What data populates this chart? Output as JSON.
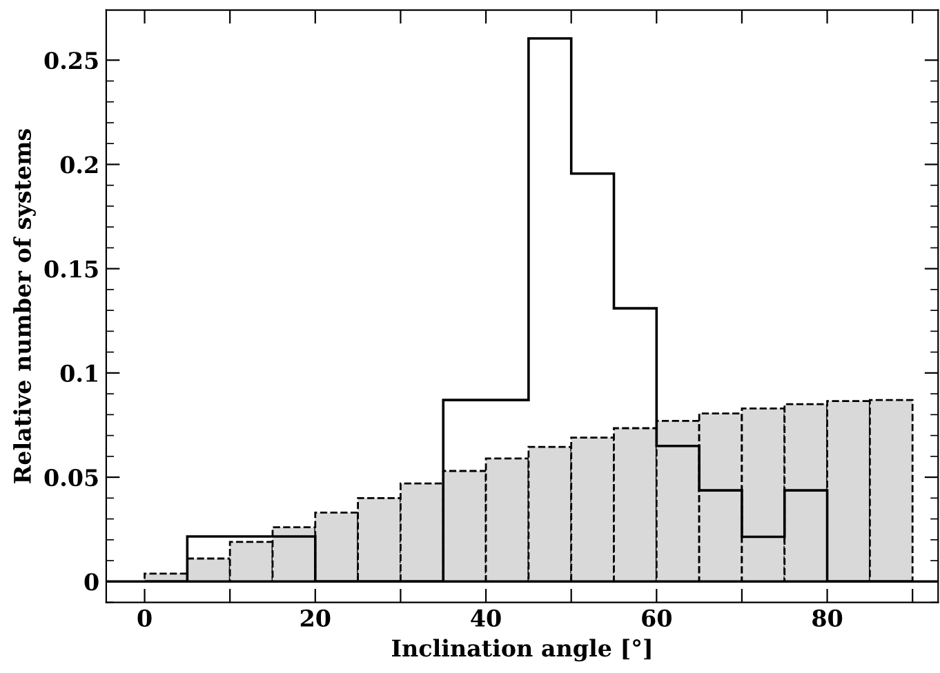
{
  "chart_data": {
    "type": "histogram",
    "xlabel": "Inclination angle [°]",
    "ylabel": "Relative number of systems",
    "bins": [
      0,
      5,
      10,
      15,
      20,
      25,
      30,
      35,
      40,
      45,
      50,
      55,
      60,
      65,
      70,
      75,
      80,
      85,
      90
    ],
    "series": [
      {
        "color": "#d9d9d9",
        "line_style": "dashed",
        "values": [
          0.0038,
          0.011,
          0.019,
          0.026,
          0.033,
          0.04,
          0.047,
          0.053,
          0.059,
          0.0645,
          0.069,
          0.0735,
          0.077,
          0.0806,
          0.083,
          0.085,
          0.0865,
          0.087
        ]
      },
      {
        "color": "#000000",
        "line_style": "solid",
        "values": [
          0,
          0.0216,
          0.0216,
          0.0216,
          0,
          0,
          0,
          0.087,
          0.087,
          0.2604,
          0.1956,
          0.131,
          0.065,
          0.0437,
          0.0214,
          0.0437,
          0,
          0
        ]
      }
    ],
    "ref_lines": [
      {
        "axis": "y",
        "value": 0,
        "color": "#000000"
      }
    ],
    "xlim": [
      -4.5,
      93
    ],
    "ylim": [
      -0.01,
      0.274
    ],
    "xticks": [
      0,
      {
        "value": 10,
        "label": null
      },
      20,
      {
        "value": 30,
        "label": null
      },
      40,
      {
        "value": 50,
        "label": null
      },
      60,
      {
        "value": 70,
        "label": null
      },
      80,
      {
        "value": 90,
        "label": null
      }
    ],
    "yticks": [
      0,
      0.05,
      0.1,
      0.15,
      0.2,
      0.25,
      {
        "value": -0.01,
        "label": null
      },
      {
        "value": 0.01,
        "label": null
      },
      {
        "value": 0.02,
        "label": null
      },
      {
        "value": 0.03,
        "label": null
      },
      {
        "value": 0.04,
        "label": null
      },
      {
        "value": 0.06,
        "label": null
      },
      {
        "value": 0.07,
        "label": null
      },
      {
        "value": 0.08,
        "label": null
      },
      {
        "value": 0.09,
        "label": null
      },
      {
        "value": 0.11,
        "label": null
      },
      {
        "value": 0.12,
        "label": null
      },
      {
        "value": 0.13,
        "label": null
      },
      {
        "value": 0.14,
        "label": null
      },
      {
        "value": 0.16,
        "label": null
      },
      {
        "value": 0.17,
        "label": null
      },
      {
        "value": 0.18,
        "label": null
      },
      {
        "value": 0.19,
        "label": null
      },
      {
        "value": 0.21,
        "label": null
      },
      {
        "value": 0.22,
        "label": null
      },
      {
        "value": 0.23,
        "label": null
      },
      {
        "value": 0.24,
        "label": null
      }
    ],
    "grid": false,
    "legend": false
  }
}
